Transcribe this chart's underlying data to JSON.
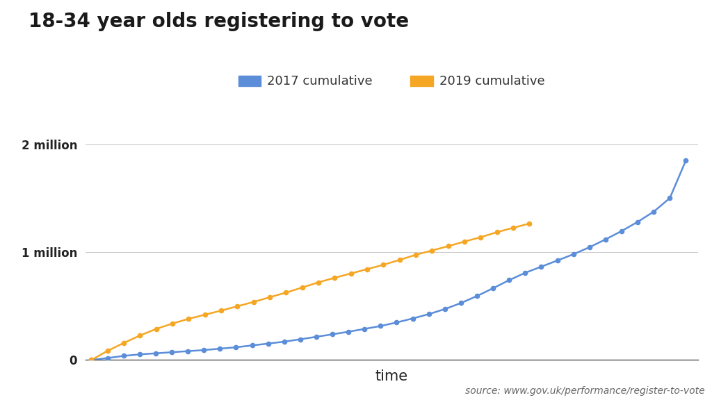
{
  "title": "18-34 year olds registering to vote",
  "xlabel": "time",
  "source_text": "source: www.gov.uk/performance/register-to-vote",
  "ytick_labels": [
    "0",
    "1 million",
    "2 million"
  ],
  "ytick_values": [
    0,
    1000000,
    2000000
  ],
  "ylim": [
    0,
    2150000
  ],
  "legend_labels": [
    "2017 cumulative",
    "2019 cumulative"
  ],
  "color_2017": "#5b8dd9",
  "color_2019": "#f5a623",
  "background_color": "#ffffff",
  "title_fontsize": 20,
  "axis_label_fontsize": 15,
  "legend_fontsize": 13,
  "source_fontsize": 10,
  "series_2017": [
    0,
    18000,
    38000,
    52000,
    62000,
    72000,
    82000,
    92000,
    105000,
    118000,
    135000,
    152000,
    170000,
    192000,
    215000,
    238000,
    262000,
    288000,
    315000,
    348000,
    385000,
    425000,
    472000,
    528000,
    593000,
    665000,
    740000,
    808000,
    865000,
    922000,
    980000,
    1045000,
    1118000,
    1195000,
    1280000,
    1375000,
    1500000,
    1850000
  ],
  "series_2019": [
    0,
    85000,
    158000,
    228000,
    288000,
    338000,
    382000,
    420000,
    458000,
    498000,
    538000,
    582000,
    625000,
    672000,
    720000,
    762000,
    802000,
    842000,
    882000,
    928000,
    975000,
    1015000,
    1055000,
    1098000,
    1138000,
    1185000,
    1225000,
    1265000
  ]
}
